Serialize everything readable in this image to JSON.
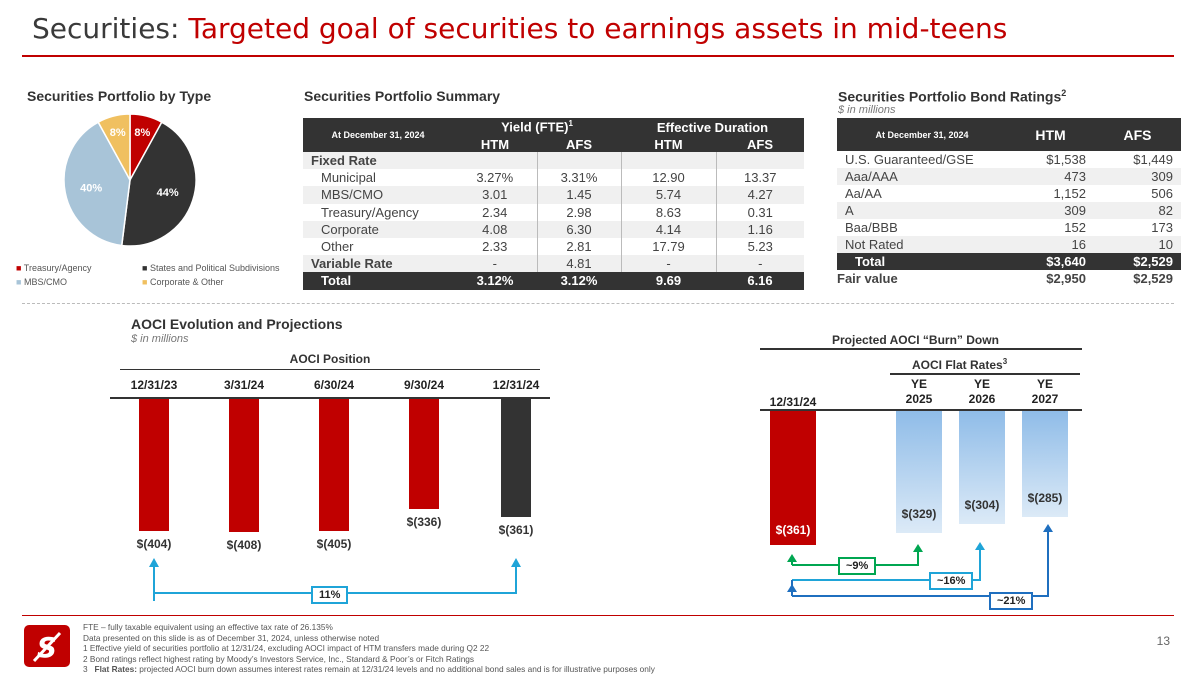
{
  "title": {
    "prefix": "Securities: ",
    "highlight": "Targeted goal of securities to earnings assets in mid-teens"
  },
  "colors": {
    "accent": "#c00000",
    "dark": "#333333",
    "light_blue": "#9fc3e0",
    "gold": "#f0c060",
    "green": "#00a651",
    "blue": "#1f6fbf"
  },
  "portfolio_type": {
    "title": "Securities Portfolio by Type",
    "slices": [
      {
        "name": "Treasury/Agency",
        "pct": 8,
        "label": "8%",
        "color": "#c00000"
      },
      {
        "name": "States and Political Subdivisions",
        "pct": 44,
        "label": "44%",
        "color": "#333333"
      },
      {
        "name": "MBS/CMO",
        "pct": 40,
        "label": "40%",
        "color": "#a8c4d8"
      },
      {
        "name": "Corporate & Other",
        "pct": 8,
        "label": "8%",
        "color": "#f0c060"
      }
    ],
    "legend": [
      "Treasury/Agency",
      "States and Political Subdivisions",
      "MBS/CMO",
      "Corporate & Other"
    ]
  },
  "summary": {
    "title": "Securities Portfolio Summary",
    "header": {
      "date": "At December 31, 2024",
      "yield": "Yield (FTE)",
      "yield_sup": "1",
      "duration": "Effective Duration",
      "htm": "HTM",
      "afs": "AFS"
    },
    "rows": [
      {
        "label": "Fixed Rate",
        "bold": true,
        "y_htm": "",
        "y_afs": "",
        "d_htm": "",
        "d_afs": ""
      },
      {
        "label": "Municipal",
        "y_htm": "3.27%",
        "y_afs": "3.31%",
        "d_htm": "12.90",
        "d_afs": "13.37"
      },
      {
        "label": "MBS/CMO",
        "y_htm": "3.01",
        "y_afs": "1.45",
        "d_htm": "5.74",
        "d_afs": "4.27"
      },
      {
        "label": "Treasury/Agency",
        "y_htm": "2.34",
        "y_afs": "2.98",
        "d_htm": "8.63",
        "d_afs": "0.31"
      },
      {
        "label": "Corporate",
        "y_htm": "4.08",
        "y_afs": "6.30",
        "d_htm": "4.14",
        "d_afs": "1.16"
      },
      {
        "label": "Other",
        "y_htm": "2.33",
        "y_afs": "2.81",
        "d_htm": "17.79",
        "d_afs": "5.23"
      },
      {
        "label": "Variable Rate",
        "bold": true,
        "y_htm": "-",
        "y_afs": "4.81",
        "d_htm": "-",
        "d_afs": "-"
      }
    ],
    "total": {
      "label": "Total",
      "y_htm": "3.12%",
      "y_afs": "3.12%",
      "d_htm": "9.69",
      "d_afs": "6.16"
    }
  },
  "bonds": {
    "title": "Securities Portfolio Bond Ratings",
    "title_sup": "2",
    "subtitle": "$ in millions",
    "header": {
      "date": "At December 31, 2024",
      "htm": "HTM",
      "afs": "AFS"
    },
    "rows": [
      {
        "label": "U.S. Guaranteed/GSE",
        "htm": "$1,538",
        "afs": "$1,449"
      },
      {
        "label": "Aaa/AAA",
        "htm": "473",
        "afs": "309"
      },
      {
        "label": "Aa/AA",
        "htm": "1,152",
        "afs": "506"
      },
      {
        "label": "A",
        "htm": "309",
        "afs": "82"
      },
      {
        "label": "Baa/BBB",
        "htm": "152",
        "afs": "173"
      },
      {
        "label": "Not Rated",
        "htm": "16",
        "afs": "10"
      }
    ],
    "total": {
      "label": "Total",
      "htm": "$3,640",
      "afs": "$2,529"
    },
    "fair_value": {
      "label": "Fair value",
      "htm": "$2,950",
      "afs": "$2,529"
    }
  },
  "aoci": {
    "title": "AOCI Evolution and Projections",
    "subtitle": "$ in millions",
    "position_label": "AOCI Position",
    "bars": [
      {
        "date": "12/31/23",
        "value": -404,
        "label": "$(404)",
        "color": "#c00000"
      },
      {
        "date": "3/31/24",
        "value": -408,
        "label": "$(408)",
        "color": "#c00000"
      },
      {
        "date": "6/30/24",
        "value": -405,
        "label": "$(405)",
        "color": "#c00000"
      },
      {
        "date": "9/30/24",
        "value": -336,
        "label": "$(336)",
        "color": "#c00000"
      },
      {
        "date": "12/31/24",
        "value": -361,
        "label": "$(361)",
        "color": "#333333"
      }
    ],
    "change": "11%"
  },
  "burn": {
    "title": "Projected AOCI “Burn” Down",
    "flat_label": "AOCI Flat Rates",
    "flat_sup": "3",
    "bars": [
      {
        "date": "12/31/24",
        "value": -361,
        "label": "$(361)"
      },
      {
        "date": "YE 2025",
        "value": -329,
        "label": "$(329)"
      },
      {
        "date": "YE 2026",
        "value": -304,
        "label": "$(304)"
      },
      {
        "date": "YE 2027",
        "value": -285,
        "label": "$(285)"
      }
    ],
    "changes": [
      "~9%",
      "~16%",
      "~21%"
    ]
  },
  "footnotes": [
    "FTE – fully taxable equivalent using an effective tax rate of 26.135%",
    "Data presented on this slide is as of December 31, 2024, unless otherwise noted",
    "1   Effective yield of securities portfolio at 12/31/24, excluding AOCI impact of HTM transfers made during Q2 22",
    "2   Bond ratings reflect highest rating by Moody’s Investors Service, Inc., Standard & Poor’s or Fitch Ratings"
  ],
  "footnote3": {
    "num": "3",
    "bold": "Flat Rates:",
    "rest": " projected AOCI burn down assumes interest rates remain at 12/31/24 levels and no additional bond sales and is for illustrative purposes only"
  },
  "page_number": "13"
}
